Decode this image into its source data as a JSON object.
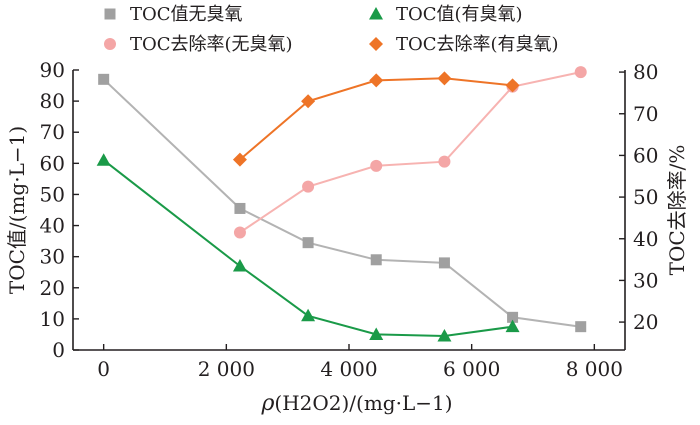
{
  "chart_data": {
    "type": "line",
    "xlabel": {
      "prefix": "ρ",
      "text": "(H2O2)/(mg·L−1)"
    },
    "ylabel_left": "TOC值/(mg·L−1)",
    "ylabel_right": "TOC去除率/%",
    "x_ticks": [
      "0",
      "2 000",
      "4 000",
      "6 000",
      "8 000"
    ],
    "y_left_ticks": [
      "0",
      "10",
      "20",
      "30",
      "40",
      "50",
      "60",
      "70",
      "80",
      "90"
    ],
    "y_right_ticks": [
      "20",
      "30",
      "40",
      "50",
      "60",
      "70",
      "80"
    ],
    "xlim": [
      -500,
      8500
    ],
    "ylim_left": [
      0,
      90
    ],
    "ylim_right": [
      13.3,
      80.5
    ],
    "grid": false,
    "legend_placement": "top",
    "series": [
      {
        "name": "TOC值无臭氧",
        "axis": "left",
        "marker": "square",
        "line_color": "#b3b3b3",
        "marker_color": "#a0a0a0",
        "x": [
          0,
          2222,
          3333,
          4444,
          5556,
          6667,
          7778
        ],
        "y": [
          87,
          45.5,
          34.5,
          29,
          28,
          10.5,
          7.5
        ]
      },
      {
        "name": "TOC值(有臭氧)",
        "axis": "left",
        "marker": "triangle",
        "line_color": "#1a9a48",
        "marker_color": "#1a9a48",
        "x": [
          0,
          2222,
          3333,
          4444,
          5556,
          6667
        ],
        "y": [
          61,
          27,
          11,
          5,
          4.5,
          7.5
        ]
      },
      {
        "name": "TOC去除率(无臭氧)",
        "axis": "right",
        "marker": "circle",
        "line_color": "#f7b3b1",
        "marker_color": "#f4a6a6",
        "x": [
          2222,
          3333,
          4444,
          5556,
          6667,
          7778
        ],
        "y": [
          41.5,
          52.5,
          57.5,
          58.5,
          76.5,
          80
        ]
      },
      {
        "name": "TOC去除率(有臭氧)",
        "axis": "right",
        "marker": "diamond",
        "line_color": "#ee7427",
        "marker_color": "#ee7427",
        "x": [
          2222,
          3333,
          4444,
          5556,
          6667
        ],
        "y": [
          59,
          73,
          78,
          78.5,
          76.8
        ]
      }
    ]
  }
}
